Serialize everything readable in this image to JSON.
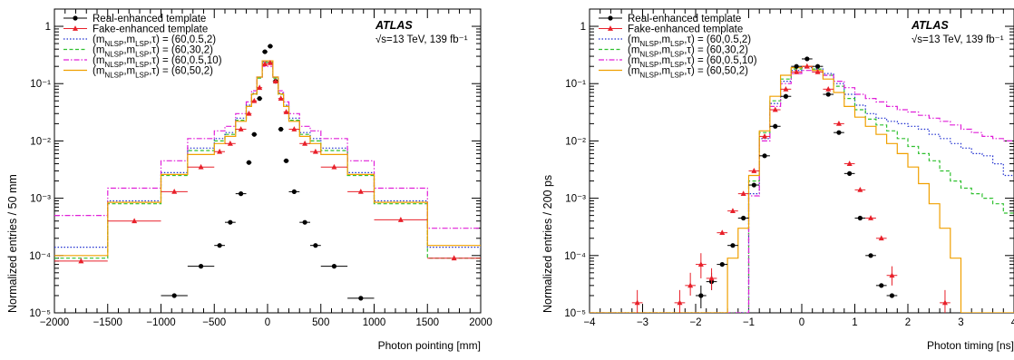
{
  "chart_data": [
    {
      "type": "line",
      "xlabel": "Photon pointing [mm]",
      "ylabel": "Normalized entries / 50 mm",
      "xlim": [
        -2000,
        2000
      ],
      "ylim": [
        1e-05,
        2
      ],
      "yscale": "log",
      "x_ticks": [
        -2000,
        -1500,
        -1000,
        -500,
        0,
        500,
        1000,
        1500,
        2000
      ],
      "x_tick_labels": [
        "−2000",
        "−1500",
        "−1000",
        "−500",
        "0",
        "500",
        "1000",
        "1500",
        "2000"
      ],
      "y_ticks": [
        1e-05,
        0.0001,
        0.001,
        0.01,
        0.1,
        1
      ],
      "y_tick_labels": [
        "10⁻⁵",
        "10⁻⁴",
        "10⁻³",
        "10⁻²",
        "10⁻¹",
        "1"
      ],
      "experiment": "ATLAS",
      "energy_label": "√s=13 TeV, 139 fb⁻¹",
      "legend_position": "top-left",
      "bin_edges": [
        -2000,
        -1500,
        -1000,
        -750,
        -500,
        -400,
        -300,
        -200,
        -150,
        -100,
        -50,
        0,
        50,
        100,
        150,
        200,
        300,
        400,
        500,
        750,
        1000,
        1500,
        2000
      ],
      "points": [
        {
          "name": "Real-enhanced template",
          "color": "#000000",
          "marker": "circle",
          "values": [
            {
              "x": -875,
              "y": 2e-05,
              "xerr": 125
            },
            {
              "x": -625,
              "y": 6.5e-05,
              "xerr": 125
            },
            {
              "x": -450,
              "y": 0.00015,
              "xerr": 50
            },
            {
              "x": -350,
              "y": 0.00038,
              "xerr": 50
            },
            {
              "x": -250,
              "y": 0.0012,
              "xerr": 50
            },
            {
              "x": -175,
              "y": 0.0042,
              "xerr": 25
            },
            {
              "x": -125,
              "y": 0.013,
              "xerr": 25
            },
            {
              "x": -75,
              "y": 0.055,
              "xerr": 25
            },
            {
              "x": -25,
              "y": 0.36,
              "xerr": 25
            },
            {
              "x": 25,
              "y": 0.45,
              "xerr": 25
            },
            {
              "x": 75,
              "y": 0.11,
              "xerr": 25
            },
            {
              "x": 125,
              "y": 0.016,
              "xerr": 25
            },
            {
              "x": 175,
              "y": 0.0045,
              "xerr": 25
            },
            {
              "x": 250,
              "y": 0.0013,
              "xerr": 50
            },
            {
              "x": 350,
              "y": 0.00038,
              "xerr": 50
            },
            {
              "x": 450,
              "y": 0.00015,
              "xerr": 50
            },
            {
              "x": 625,
              "y": 6.5e-05,
              "xerr": 125
            },
            {
              "x": 875,
              "y": 1.8e-05,
              "xerr": 125
            }
          ]
        },
        {
          "name": "Fake-enhanced template",
          "color": "#e8202a",
          "marker": "triangle",
          "values": [
            {
              "x": -1750,
              "y": 8e-05,
              "xerr": 250
            },
            {
              "x": -1250,
              "y": 0.0004,
              "xerr": 250
            },
            {
              "x": -875,
              "y": 0.0013,
              "xerr": 125
            },
            {
              "x": -625,
              "y": 0.0035,
              "xerr": 125
            },
            {
              "x": -450,
              "y": 0.0065,
              "xerr": 50
            },
            {
              "x": -350,
              "y": 0.009,
              "xerr": 50
            },
            {
              "x": -250,
              "y": 0.016,
              "xerr": 50
            },
            {
              "x": -175,
              "y": 0.03,
              "xerr": 25
            },
            {
              "x": -125,
              "y": 0.05,
              "xerr": 25
            },
            {
              "x": -75,
              "y": 0.085,
              "xerr": 25
            },
            {
              "x": -25,
              "y": 0.22,
              "xerr": 25
            },
            {
              "x": 25,
              "y": 0.23,
              "xerr": 25
            },
            {
              "x": 75,
              "y": 0.11,
              "xerr": 25
            },
            {
              "x": 125,
              "y": 0.055,
              "xerr": 25
            },
            {
              "x": 175,
              "y": 0.032,
              "xerr": 25
            },
            {
              "x": 250,
              "y": 0.016,
              "xerr": 50
            },
            {
              "x": 350,
              "y": 0.009,
              "xerr": 50
            },
            {
              "x": 450,
              "y": 0.0065,
              "xerr": 50
            },
            {
              "x": 625,
              "y": 0.0035,
              "xerr": 125
            },
            {
              "x": 875,
              "y": 0.0013,
              "xerr": 125
            },
            {
              "x": 1250,
              "y": 0.00042,
              "xerr": 250
            },
            {
              "x": 1750,
              "y": 9e-05,
              "xerr": 250
            }
          ]
        }
      ],
      "series": [
        {
          "name": "(mNLSP,mLSP,τ) = (60,0.5,2)",
          "color": "#1f2fd0",
          "dash": "1.5,2",
          "values": [
            0.00014,
            0.0009,
            0.0028,
            0.0075,
            0.011,
            0.014,
            0.025,
            0.042,
            0.068,
            0.13,
            0.24,
            0.24,
            0.13,
            0.068,
            0.042,
            0.025,
            0.014,
            0.011,
            0.0075,
            0.0028,
            0.0009,
            0.00014
          ]
        },
        {
          "name": "(mNLSP,mLSP,τ) = (60,30,2)",
          "color": "#2fc02f",
          "dash": "4,2.5",
          "values": [
            9e-05,
            0.0008,
            0.0025,
            0.0068,
            0.01,
            0.013,
            0.023,
            0.04,
            0.065,
            0.125,
            0.235,
            0.235,
            0.125,
            0.065,
            0.04,
            0.023,
            0.013,
            0.01,
            0.0068,
            0.0025,
            0.0008,
            9e-05
          ]
        },
        {
          "name": "(mNLSP,mLSP,τ) = (60,0.5,10)",
          "color": "#e020d8",
          "dash": "6,2,1.5,2",
          "values": [
            0.0005,
            0.0015,
            0.0045,
            0.011,
            0.015,
            0.018,
            0.03,
            0.048,
            0.075,
            0.13,
            0.2,
            0.2,
            0.13,
            0.075,
            0.048,
            0.03,
            0.018,
            0.015,
            0.011,
            0.0045,
            0.0015,
            0.0003
          ]
        },
        {
          "name": "(mNLSP,mLSP,τ) = (60,50,2)",
          "color": "#f0a000",
          "dash": "",
          "values": [
            0.0001,
            0.00085,
            0.0026,
            0.0058,
            0.009,
            0.012,
            0.022,
            0.04,
            0.066,
            0.13,
            0.25,
            0.25,
            0.13,
            0.066,
            0.04,
            0.022,
            0.012,
            0.009,
            0.0058,
            0.0026,
            0.00085,
            0.00015
          ]
        }
      ]
    },
    {
      "type": "line",
      "xlabel": "Photon timing [ns]",
      "ylabel": "Normalized entries / 200 ps",
      "xlim": [
        -4,
        4
      ],
      "ylim": [
        1e-05,
        2
      ],
      "yscale": "log",
      "x_ticks": [
        -4,
        -3,
        -2,
        -1,
        0,
        1,
        2,
        3,
        4
      ],
      "x_tick_labels": [
        "−4",
        "−3",
        "−2",
        "−1",
        "0",
        "1",
        "2",
        "3",
        "4"
      ],
      "y_ticks": [
        1e-05,
        0.0001,
        0.001,
        0.01,
        0.1,
        1
      ],
      "y_tick_labels": [
        "10⁻⁵",
        "10⁻⁴",
        "10⁻³",
        "10⁻²",
        "10⁻¹",
        "1"
      ],
      "experiment": "ATLAS",
      "energy_label": "√s=13 TeV, 139 fb⁻¹",
      "legend_position": "top-left",
      "bin_edges": [
        -4.0,
        -3.8,
        -3.6,
        -3.4,
        -3.2,
        -3.0,
        -2.8,
        -2.6,
        -2.4,
        -2.2,
        -2.0,
        -1.8,
        -1.6,
        -1.4,
        -1.2,
        -1.0,
        -0.8,
        -0.6,
        -0.4,
        -0.2,
        0.0,
        0.2,
        0.4,
        0.6,
        0.8,
        1.0,
        1.2,
        1.4,
        1.6,
        1.8,
        2.0,
        2.2,
        2.4,
        2.6,
        2.8,
        3.0,
        3.2,
        3.4,
        3.6,
        3.8,
        4.0
      ],
      "points": [
        {
          "name": "Real-enhanced template",
          "color": "#000000",
          "marker": "circle",
          "values": [
            {
              "x": -1.9,
              "y": 2e-05,
              "xerr": 0.1,
              "yerr_lo": 8e-06,
              "yerr_hi": 1e-05
            },
            {
              "x": -1.7,
              "y": 3.5e-05,
              "xerr": 0.1,
              "yerr_lo": 1e-05,
              "yerr_hi": 1.5e-05
            },
            {
              "x": -1.5,
              "y": 7e-05,
              "xerr": 0.1
            },
            {
              "x": -1.3,
              "y": 0.00015,
              "xerr": 0.1
            },
            {
              "x": -1.1,
              "y": 0.00045,
              "xerr": 0.1
            },
            {
              "x": -0.9,
              "y": 0.0017,
              "xerr": 0.1
            },
            {
              "x": -0.7,
              "y": 0.0055,
              "xerr": 0.1
            },
            {
              "x": -0.5,
              "y": 0.018,
              "xerr": 0.1
            },
            {
              "x": -0.3,
              "y": 0.06,
              "xerr": 0.1
            },
            {
              "x": -0.1,
              "y": 0.2,
              "xerr": 0.1
            },
            {
              "x": 0.1,
              "y": 0.27,
              "xerr": 0.1
            },
            {
              "x": 0.3,
              "y": 0.2,
              "xerr": 0.1
            },
            {
              "x": 0.5,
              "y": 0.065,
              "xerr": 0.1
            },
            {
              "x": 0.7,
              "y": 0.014,
              "xerr": 0.1
            },
            {
              "x": 0.9,
              "y": 0.0027,
              "xerr": 0.1
            },
            {
              "x": 1.1,
              "y": 0.00045,
              "xerr": 0.1
            },
            {
              "x": 1.3,
              "y": 0.0001,
              "xerr": 0.1
            },
            {
              "x": 1.5,
              "y": 3e-05,
              "xerr": 0.1
            },
            {
              "x": 1.7,
              "y": 2e-05,
              "xerr": 0.1
            }
          ]
        },
        {
          "name": "Fake-enhanced template",
          "color": "#e8202a",
          "marker": "triangle",
          "values": [
            {
              "x": -3.1,
              "y": 1.5e-05,
              "xerr": 0.1,
              "yerr_lo": 6e-06,
              "yerr_hi": 1e-05
            },
            {
              "x": -2.3,
              "y": 1.5e-05,
              "xerr": 0.1,
              "yerr_lo": 6e-06,
              "yerr_hi": 1e-05
            },
            {
              "x": -2.1,
              "y": 3e-05,
              "xerr": 0.1,
              "yerr_lo": 1e-05,
              "yerr_hi": 2e-05
            },
            {
              "x": -1.9,
              "y": 7e-05,
              "xerr": 0.1,
              "yerr_lo": 3e-05,
              "yerr_hi": 4e-05
            },
            {
              "x": -1.7,
              "y": 4e-05,
              "xerr": 0.1,
              "yerr_lo": 1.5e-05,
              "yerr_hi": 2e-05
            },
            {
              "x": -1.5,
              "y": 0.00025,
              "xerr": 0.1
            },
            {
              "x": -1.3,
              "y": 0.0006,
              "xerr": 0.1
            },
            {
              "x": -1.1,
              "y": 0.0012,
              "xerr": 0.1
            },
            {
              "x": -0.9,
              "y": 0.003,
              "xerr": 0.1
            },
            {
              "x": -0.7,
              "y": 0.012,
              "xerr": 0.1
            },
            {
              "x": -0.5,
              "y": 0.035,
              "xerr": 0.1
            },
            {
              "x": -0.3,
              "y": 0.08,
              "xerr": 0.1
            },
            {
              "x": -0.1,
              "y": 0.16,
              "xerr": 0.1
            },
            {
              "x": 0.1,
              "y": 0.2,
              "xerr": 0.1
            },
            {
              "x": 0.3,
              "y": 0.16,
              "xerr": 0.1
            },
            {
              "x": 0.5,
              "y": 0.08,
              "xerr": 0.1
            },
            {
              "x": 0.7,
              "y": 0.02,
              "xerr": 0.1
            },
            {
              "x": 0.9,
              "y": 0.004,
              "xerr": 0.1
            },
            {
              "x": 1.1,
              "y": 0.0014,
              "xerr": 0.1
            },
            {
              "x": 1.3,
              "y": 0.00045,
              "xerr": 0.1
            },
            {
              "x": 1.5,
              "y": 0.0002,
              "xerr": 0.1
            },
            {
              "x": 1.7,
              "y": 4.5e-05,
              "xerr": 0.1,
              "yerr_lo": 1.5e-05,
              "yerr_hi": 2e-05
            },
            {
              "x": 2.7,
              "y": 1.5e-05,
              "xerr": 0.1,
              "yerr_lo": 6e-06,
              "yerr_hi": 1e-05
            }
          ]
        }
      ],
      "series": [
        {
          "name": "(mNLSP,mLSP,τ) = (60,0.5,2)",
          "color": "#1f2fd0",
          "dash": "1.5,2",
          "values": [
            1e-05,
            1e-05,
            1e-05,
            1e-05,
            1e-05,
            1e-05,
            1e-05,
            1e-05,
            1e-05,
            1e-05,
            1e-05,
            1e-05,
            1e-05,
            1e-05,
            1e-05,
            0.0012,
            0.011,
            0.045,
            0.11,
            0.17,
            0.19,
            0.18,
            0.15,
            0.1,
            0.065,
            0.042,
            0.03,
            0.025,
            0.022,
            0.02,
            0.018,
            0.016,
            0.013,
            0.011,
            0.009,
            0.0075,
            0.006,
            0.0055,
            0.004,
            0.0025
          ]
        },
        {
          "name": "(mNLSP,mLSP,τ) = (60,30,2)",
          "color": "#2fc02f",
          "dash": "4,2.5",
          "values": [
            1e-05,
            1e-05,
            1e-05,
            1e-05,
            1e-05,
            1e-05,
            1e-05,
            1e-05,
            1e-05,
            1e-05,
            1e-05,
            1e-05,
            1e-05,
            1e-05,
            1e-05,
            0.002,
            0.014,
            0.05,
            0.12,
            0.18,
            0.2,
            0.18,
            0.14,
            0.09,
            0.055,
            0.035,
            0.024,
            0.019,
            0.015,
            0.011,
            0.008,
            0.006,
            0.0045,
            0.003,
            0.002,
            0.0015,
            0.0012,
            0.001,
            0.0008,
            0.00055
          ]
        },
        {
          "name": "(mNLSP,mLSP,τ) = (60,0.5,10)",
          "color": "#e020d8",
          "dash": "6,2,1.5,2",
          "values": [
            1e-05,
            1e-05,
            1e-05,
            1e-05,
            1e-05,
            1e-05,
            1e-05,
            1e-05,
            1e-05,
            1e-05,
            1e-05,
            1e-05,
            1e-05,
            1e-05,
            1e-05,
            0.0011,
            0.01,
            0.04,
            0.1,
            0.15,
            0.17,
            0.16,
            0.14,
            0.11,
            0.085,
            0.065,
            0.055,
            0.048,
            0.04,
            0.035,
            0.032,
            0.028,
            0.025,
            0.022,
            0.019,
            0.016,
            0.014,
            0.012,
            0.011,
            0.01
          ]
        },
        {
          "name": "(mNLSP,mLSP,τ) = (60,50,2)",
          "color": "#f0a000",
          "dash": "",
          "values": [
            1e-05,
            1e-05,
            1e-05,
            1e-05,
            1e-05,
            1e-05,
            1e-05,
            1e-05,
            1e-05,
            1e-05,
            1e-05,
            1e-05,
            1e-05,
            9e-05,
            0.0003,
            0.0025,
            0.015,
            0.06,
            0.14,
            0.19,
            0.2,
            0.17,
            0.12,
            0.07,
            0.04,
            0.026,
            0.018,
            0.013,
            0.009,
            0.006,
            0.0035,
            0.0018,
            0.0008,
            0.0003,
            9e-05,
            1e-05,
            1e-05,
            1e-05,
            1e-05,
            1e-05
          ]
        }
      ]
    }
  ]
}
